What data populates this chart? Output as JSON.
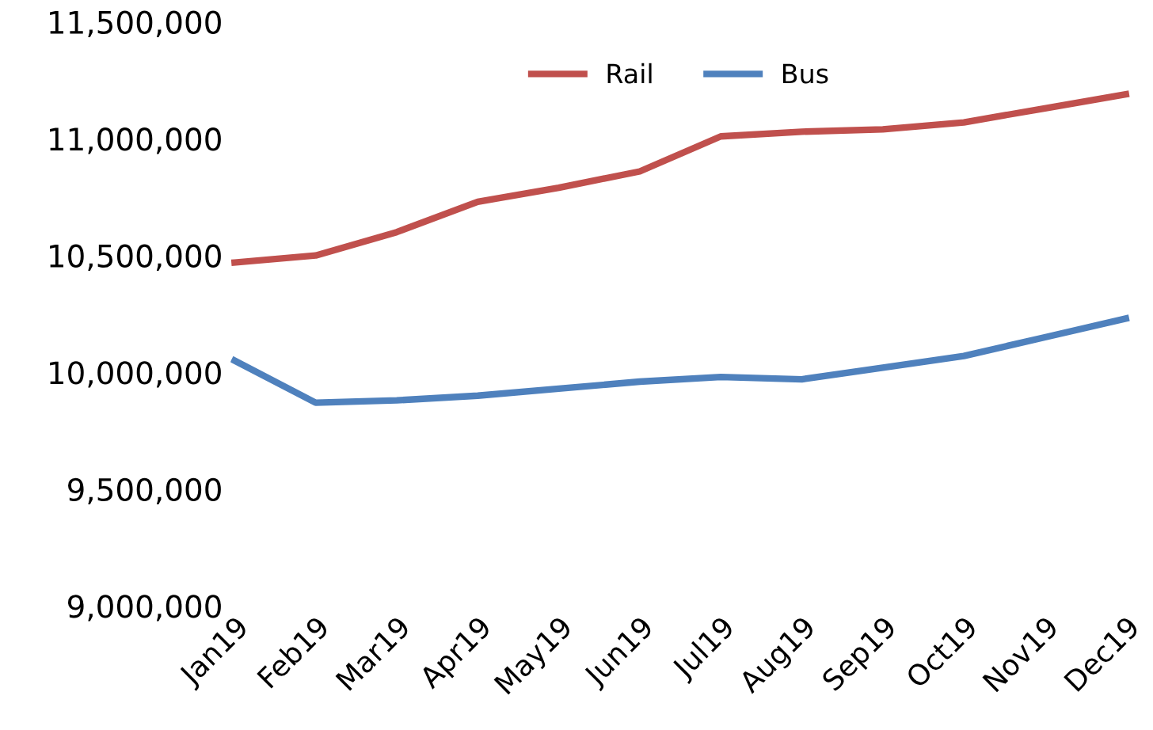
{
  "chart_data": {
    "type": "line",
    "categories": [
      "Jan19",
      "Feb19",
      "Mar19",
      "Apr19",
      "May19",
      "Jun19",
      "Jul19",
      "Aug19",
      "Sep19",
      "Oct19",
      "Nov19",
      "Dec19"
    ],
    "series": [
      {
        "name": "Rail",
        "color": "#c0504d",
        "values": [
          10470000,
          10500000,
          10600000,
          10730000,
          10790000,
          10860000,
          11010000,
          11030000,
          11040000,
          11070000,
          11130000,
          11190000
        ]
      },
      {
        "name": "Bus",
        "color": "#4f81bd",
        "values": [
          10050000,
          9870000,
          9880000,
          9900000,
          9930000,
          9960000,
          9980000,
          9970000,
          10020000,
          10070000,
          10150000,
          10230000
        ]
      }
    ],
    "ylim": [
      9000000,
      11500000
    ],
    "yticks": [
      {
        "value": 9000000,
        "label": "9,000,000"
      },
      {
        "value": 9500000,
        "label": "9,500,000"
      },
      {
        "value": 10000000,
        "label": "10,000,000"
      },
      {
        "value": 10500000,
        "label": "10,500,000"
      },
      {
        "value": 11000000,
        "label": "11,000,000"
      },
      {
        "value": 11500000,
        "label": "11,500,000"
      }
    ],
    "grid": false,
    "legend": "top",
    "marker": "none",
    "line_style": "solid"
  }
}
